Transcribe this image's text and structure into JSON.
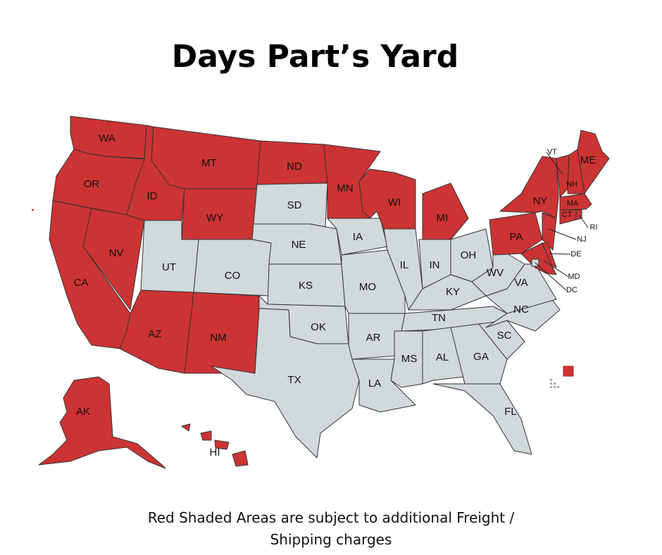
{
  "title": "Days Part’s Yard",
  "footer": {
    "line1": "Red Shaded Areas are subject to additional Freight /",
    "line2": "Shipping charges"
  },
  "colors": {
    "shaded": "#cc3333",
    "unshaded": "#d1d9dc",
    "border": "#333333"
  },
  "states": [
    {
      "abbr": "WA",
      "shaded": true
    },
    {
      "abbr": "OR",
      "shaded": true
    },
    {
      "abbr": "CA",
      "shaded": true
    },
    {
      "abbr": "NV",
      "shaded": true
    },
    {
      "abbr": "ID",
      "shaded": true
    },
    {
      "abbr": "MT",
      "shaded": true
    },
    {
      "abbr": "WY",
      "shaded": true
    },
    {
      "abbr": "UT",
      "shaded": false
    },
    {
      "abbr": "CO",
      "shaded": false
    },
    {
      "abbr": "AZ",
      "shaded": true
    },
    {
      "abbr": "NM",
      "shaded": true
    },
    {
      "abbr": "ND",
      "shaded": true
    },
    {
      "abbr": "SD",
      "shaded": false
    },
    {
      "abbr": "NE",
      "shaded": false
    },
    {
      "abbr": "KS",
      "shaded": false
    },
    {
      "abbr": "OK",
      "shaded": false
    },
    {
      "abbr": "TX",
      "shaded": false
    },
    {
      "abbr": "MN",
      "shaded": true
    },
    {
      "abbr": "IA",
      "shaded": false
    },
    {
      "abbr": "MO",
      "shaded": false
    },
    {
      "abbr": "AR",
      "shaded": false
    },
    {
      "abbr": "LA",
      "shaded": false
    },
    {
      "abbr": "WI",
      "shaded": true
    },
    {
      "abbr": "IL",
      "shaded": false
    },
    {
      "abbr": "MI",
      "shaded": true
    },
    {
      "abbr": "IN",
      "shaded": false
    },
    {
      "abbr": "OH",
      "shaded": false
    },
    {
      "abbr": "KY",
      "shaded": false
    },
    {
      "abbr": "TN",
      "shaded": false
    },
    {
      "abbr": "MS",
      "shaded": false
    },
    {
      "abbr": "AL",
      "shaded": false
    },
    {
      "abbr": "GA",
      "shaded": false
    },
    {
      "abbr": "FL",
      "shaded": false
    },
    {
      "abbr": "SC",
      "shaded": false
    },
    {
      "abbr": "NC",
      "shaded": false
    },
    {
      "abbr": "VA",
      "shaded": false
    },
    {
      "abbr": "WV",
      "shaded": false
    },
    {
      "abbr": "PA",
      "shaded": true
    },
    {
      "abbr": "NY",
      "shaded": true
    },
    {
      "abbr": "NJ",
      "shaded": true
    },
    {
      "abbr": "DE",
      "shaded": true
    },
    {
      "abbr": "MD",
      "shaded": true
    },
    {
      "abbr": "DC",
      "shaded": false
    },
    {
      "abbr": "VT",
      "shaded": true
    },
    {
      "abbr": "NH",
      "shaded": true
    },
    {
      "abbr": "ME",
      "shaded": true
    },
    {
      "abbr": "MA",
      "shaded": true
    },
    {
      "abbr": "CT",
      "shaded": true
    },
    {
      "abbr": "RI",
      "shaded": true
    },
    {
      "abbr": "AK",
      "shaded": true
    },
    {
      "abbr": "HI",
      "shaded": true
    }
  ],
  "legend_swatch": {
    "shaded": true
  }
}
